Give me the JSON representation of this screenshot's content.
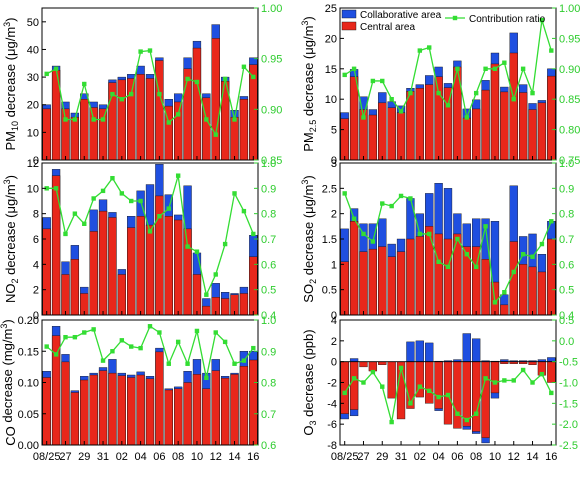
{
  "colors": {
    "collaborative": "#1f4fe0",
    "central": "#e8271b",
    "ratio": "#33dd33",
    "ratio_axis": "#2ecc2e",
    "frame": "#000000",
    "background": "#ffffff"
  },
  "legend": {
    "collaborative": "Collaborative area",
    "central": "Central area",
    "ratio": "Contribution ratio",
    "placement": "top of upper-right panel"
  },
  "x_tick_labels": [
    "08/25",
    "27",
    "29",
    "31",
    "02",
    "04",
    "06",
    "08",
    "10",
    "12",
    "14",
    "16"
  ],
  "chart_data": [
    {
      "type": "bar",
      "ylabel_main": "PM",
      "ylabel_sub": "10",
      "ylabel_rest": " decrease (μg/m",
      "ylabel_sup": "3",
      "ylabel_end": ")",
      "ylim": [
        0,
        55
      ],
      "yticks": [
        0,
        10,
        20,
        30,
        40,
        50
      ],
      "y2lim": [
        0.85,
        1.0
      ],
      "y2ticks": [
        0.85,
        0.9,
        0.95,
        1.0
      ],
      "y2ticklabels": [
        "0.85",
        "0.90",
        "0.95",
        "1.00"
      ],
      "total": [
        20,
        34,
        21,
        17,
        24,
        21,
        20,
        29,
        30,
        31,
        34,
        31,
        37,
        22,
        24,
        37,
        43,
        24,
        49,
        30,
        18,
        23,
        37
      ],
      "central": [
        18.5,
        32.5,
        18.5,
        15.5,
        22,
        19,
        18.5,
        28,
        29,
        29.5,
        31,
        29.5,
        36,
        19.5,
        21,
        33,
        40.5,
        22.5,
        44,
        28.5,
        15.5,
        22,
        34.5
      ],
      "ratio": [
        0.935,
        0.94,
        0.89,
        0.89,
        0.925,
        0.89,
        0.89,
        0.915,
        0.91,
        0.915,
        0.957,
        0.958,
        0.915,
        0.887,
        0.895,
        0.93,
        0.927,
        0.89,
        0.875,
        0.93,
        0.89,
        0.942,
        0.932
      ]
    },
    {
      "type": "bar",
      "ylabel_main": "PM",
      "ylabel_sub": "2.5",
      "ylabel_rest": " decrease (μg/m",
      "ylabel_sup": "3",
      "ylabel_end": ")",
      "ylim": [
        0,
        25
      ],
      "yticks": [
        0,
        5,
        10,
        15,
        20,
        25
      ],
      "y2lim": [
        0.75,
        1.0
      ],
      "y2ticks": [
        0.75,
        0.8,
        0.85,
        0.9,
        0.95,
        1.0
      ],
      "y2ticklabels": [
        "0.75",
        "0.80",
        "0.85",
        "0.90",
        "0.95",
        "1.00"
      ],
      "total": [
        7.8,
        14.9,
        10.4,
        8.3,
        11.1,
        9.6,
        8.9,
        11.8,
        12.4,
        13.9,
        15.3,
        12.6,
        16.3,
        8.4,
        9.9,
        13.1,
        17.6,
        12.0,
        20.9,
        12.4,
        9.3,
        9.8,
        15.0
      ],
      "central": [
        6.8,
        13.7,
        8.3,
        7.4,
        9.4,
        8.6,
        7.8,
        11.3,
        11.8,
        12.4,
        13.7,
        11.9,
        15.3,
        6.9,
        8.4,
        11.5,
        15.8,
        11.2,
        17.6,
        11.1,
        8.3,
        9.4,
        13.8
      ],
      "ratio": [
        0.89,
        0.9,
        0.82,
        0.88,
        0.88,
        0.85,
        0.83,
        0.86,
        0.93,
        0.935,
        0.86,
        0.84,
        0.9,
        0.82,
        0.86,
        0.9,
        0.9,
        0.91,
        0.85,
        0.9,
        0.86,
        0.98,
        0.93
      ]
    },
    {
      "type": "bar",
      "ylabel_main": "NO",
      "ylabel_sub": "2",
      "ylabel_rest": " decrease (μg/m",
      "ylabel_sup": "3",
      "ylabel_end": ")",
      "ylim": [
        0,
        12
      ],
      "yticks": [
        0,
        2,
        4,
        6,
        8,
        10,
        12
      ],
      "y2lim": [
        0.4,
        1.0
      ],
      "y2ticks": [
        0.4,
        0.5,
        0.6,
        0.7,
        0.8,
        0.9,
        1.0
      ],
      "y2ticklabels": [
        "0.4",
        "0.5",
        "0.6",
        "0.7",
        "0.8",
        "0.9",
        "1.0"
      ],
      "total": [
        7.7,
        11.5,
        4.2,
        5.5,
        2.2,
        8.3,
        9.1,
        8.1,
        3.6,
        7.8,
        9.8,
        10.3,
        11.9,
        9.5,
        7.9,
        10.2,
        4.9,
        1.3,
        2.5,
        1.8,
        1.7,
        2.2,
        6.3
      ],
      "central": [
        6.8,
        11.0,
        3.2,
        4.4,
        1.7,
        6.6,
        8.2,
        7.7,
        3.2,
        6.9,
        7.8,
        7.1,
        9.4,
        7.8,
        7.5,
        6.8,
        3.2,
        0.7,
        1.4,
        1.3,
        1.6,
        1.7,
        4.6
      ],
      "ratio": [
        0.9,
        0.9,
        0.72,
        0.8,
        0.76,
        0.86,
        0.89,
        0.94,
        0.88,
        0.85,
        0.85,
        0.73,
        0.79,
        0.82,
        0.95,
        0.67,
        0.65,
        0.48,
        0.56,
        0.68,
        0.88,
        0.81,
        0.72
      ]
    },
    {
      "type": "bar",
      "ylabel_main": "SO",
      "ylabel_sub": "2",
      "ylabel_rest": " decrease (μg/m",
      "ylabel_sup": "3",
      "ylabel_end": ")",
      "ylim": [
        0,
        3.0
      ],
      "yticks": [
        0,
        0.5,
        1.0,
        1.5,
        2.0,
        2.5,
        3.0
      ],
      "y2lim": [
        0.4,
        1.0
      ],
      "y2ticks": [
        0.4,
        0.5,
        0.6,
        0.7,
        0.8,
        0.9,
        1.0
      ],
      "y2ticklabels": [
        "0.4",
        "0.5",
        "0.6",
        "0.7",
        "0.8",
        "0.9",
        "1.0"
      ],
      "total": [
        1.7,
        2.1,
        1.8,
        1.8,
        1.9,
        1.4,
        1.5,
        2.3,
        2.0,
        2.4,
        2.6,
        2.5,
        2.0,
        1.8,
        1.9,
        1.9,
        1.85,
        0.4,
        2.55,
        1.55,
        1.6,
        1.2,
        1.85
      ],
      "central": [
        1.05,
        1.85,
        1.25,
        1.3,
        1.35,
        1.15,
        1.25,
        1.5,
        1.55,
        1.75,
        1.6,
        1.5,
        1.6,
        1.35,
        1.35,
        1.1,
        0.65,
        0.2,
        1.45,
        1.0,
        0.95,
        0.85,
        1.5
      ],
      "ratio": [
        0.88,
        0.78,
        0.72,
        0.69,
        0.84,
        0.83,
        0.87,
        0.86,
        0.72,
        0.72,
        0.61,
        0.59,
        0.7,
        0.64,
        0.59,
        0.75,
        0.45,
        0.49,
        0.57,
        0.64,
        0.63,
        0.68,
        0.77
      ]
    },
    {
      "type": "bar",
      "ylabel_main": "CO",
      "ylabel_sub": "",
      "ylabel_rest": " decrease (mg/m",
      "ylabel_sup": "3",
      "ylabel_end": ")",
      "ylim": [
        0,
        0.2
      ],
      "yticks": [
        0,
        0.05,
        0.1,
        0.15,
        0.2
      ],
      "yticklabels": [
        "0.00",
        "0.05",
        "0.10",
        "0.15",
        "0.20"
      ],
      "y2lim": [
        0.6,
        1.0
      ],
      "y2ticks": [
        0.6,
        0.7,
        0.8,
        0.9,
        1.0
      ],
      "y2ticklabels": [
        "0.6",
        "0.7",
        "0.8",
        "0.9",
        "1.0"
      ],
      "total": [
        0.118,
        0.19,
        0.145,
        0.087,
        0.11,
        0.115,
        0.124,
        0.137,
        0.115,
        0.112,
        0.117,
        0.11,
        0.155,
        0.09,
        0.093,
        0.118,
        0.137,
        0.115,
        0.137,
        0.11,
        0.115,
        0.15,
        0.15
      ],
      "central": [
        0.108,
        0.175,
        0.133,
        0.084,
        0.104,
        0.112,
        0.119,
        0.115,
        0.111,
        0.108,
        0.112,
        0.106,
        0.149,
        0.088,
        0.09,
        0.1,
        0.113,
        0.09,
        0.119,
        0.107,
        0.113,
        0.126,
        0.136
      ],
      "ratio": [
        0.915,
        0.89,
        0.945,
        0.945,
        0.96,
        0.97,
        0.87,
        0.9,
        0.935,
        0.915,
        0.91,
        0.98,
        0.96,
        0.86,
        0.93,
        0.86,
        0.965,
        0.815,
        0.96,
        0.93,
        0.86,
        0.87,
        0.91
      ]
    },
    {
      "type": "bar",
      "ylabel_main": "O",
      "ylabel_sub": "3",
      "ylabel_rest": " decrease (ppb)",
      "ylabel_sup": "",
      "ylabel_end": "",
      "ylim": [
        -8,
        4
      ],
      "yticks": [
        -8,
        -6,
        -4,
        -2,
        0,
        2,
        4
      ],
      "y2lim": [
        -2.5,
        0.5
      ],
      "y2ticks": [
        -2.5,
        -2.0,
        -1.5,
        -1.0,
        -0.5,
        0.0,
        0.5
      ],
      "y2ticklabels": [
        "-2.5",
        "-2.0",
        "-1.5",
        "-1.0",
        "-0.5",
        "0.0",
        "0.5"
      ],
      "collab_pos": [
        0,
        0.3,
        0,
        0,
        0,
        0,
        0,
        1.9,
        2.0,
        1.8,
        0.05,
        0.1,
        0.2,
        2.7,
        2.2,
        0.1,
        0.05,
        0.2,
        0.1,
        0.1,
        0.1,
        0.2,
        0.4
      ],
      "central_val": [
        -5.0,
        -4.6,
        -0.5,
        -0.9,
        -0.3,
        -3.5,
        -5.5,
        -4.5,
        -3.4,
        -4.0,
        -4.5,
        -6.0,
        -6.4,
        -6.2,
        -6.7,
        -7.3,
        -3.0,
        -0.2,
        -0.2,
        -0.2,
        -0.3,
        -1.3,
        -2.0
      ],
      "collab_neg": [
        -0.5,
        -0.6,
        0,
        0,
        0,
        0,
        0,
        0,
        0,
        0,
        -0.2,
        0,
        0,
        -0.3,
        -0.2,
        -0.5,
        -0.5,
        0,
        0,
        0,
        0,
        0,
        0
      ],
      "ratio": [
        -1.25,
        -0.9,
        -1.0,
        -0.75,
        -1.1,
        -1.95,
        -0.65,
        -1.5,
        -1.1,
        -1.2,
        -1.35,
        -1.3,
        -1.75,
        -1.9,
        -1.75,
        -0.9,
        -1.0,
        -0.95,
        -0.95,
        -0.7,
        -1.0,
        -0.8,
        -1.25
      ]
    }
  ]
}
